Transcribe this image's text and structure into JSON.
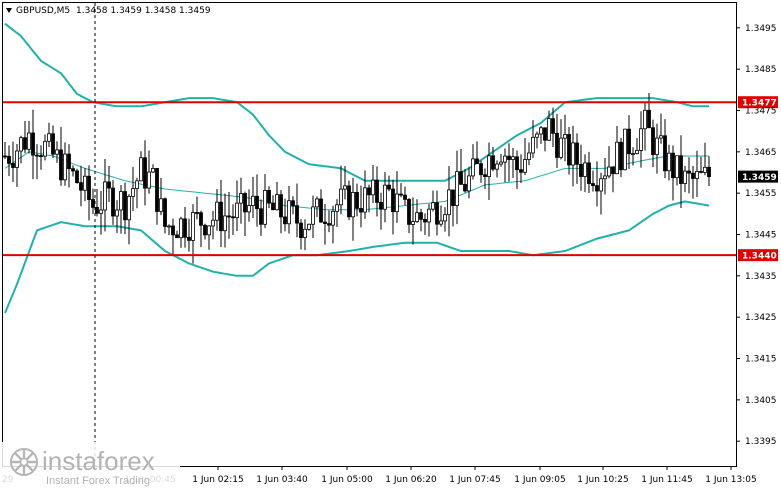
{
  "header": {
    "symbol_label": "GBPUSD,M5",
    "ohlc_text": "1.3458 1.3459 1.3458 1.3459"
  },
  "levels": {
    "upper": "1.3477",
    "lower": "1.3440",
    "current": "1.3459"
  },
  "watermark": {
    "brand": "instaforex",
    "tagline": "Instant Forex Trading"
  },
  "colors": {
    "background": "#ffffff",
    "candle": "#000000",
    "bollinger": "#20b2aa",
    "level_line": "#e00000",
    "level_label_bg": "#e00000",
    "current_label_bg": "#000000"
  },
  "chart_data": {
    "type": "candlestick",
    "symbol": "GBPUSD",
    "timeframe": "M5",
    "y_ticks": [
      "1.3495",
      "1.3485",
      "1.3475",
      "1.3465",
      "1.3455",
      "1.3445",
      "1.3435",
      "1.3425",
      "1.3415",
      "1.3405",
      "1.3395"
    ],
    "x_ticks": [
      "1 Jun 00:45",
      "1 Jun 02:15",
      "1 Jun 03:40",
      "1 Jun 05:00",
      "1 Jun 06:20",
      "1 Jun 07:45",
      "1 Jun 09:05",
      "1 Jun 10:25",
      "1 Jun 11:45",
      "1 Jun 13:05"
    ],
    "ylim": [
      1.3389,
      1.3501
    ],
    "horizontal_levels": [
      1.3477,
      1.344
    ],
    "current_price": 1.3459,
    "candle_count": 177,
    "candle_shape": [
      [
        0,
        1.3464
      ],
      [
        2,
        1.3465
      ],
      [
        6,
        1.3469
      ],
      [
        10,
        1.3466
      ],
      [
        14,
        1.3462
      ],
      [
        18,
        1.3458
      ],
      [
        22,
        1.3452
      ],
      [
        26,
        1.3454
      ],
      [
        30,
        1.3453
      ],
      [
        34,
        1.346
      ],
      [
        37,
        1.3458
      ],
      [
        40,
        1.3447
      ],
      [
        46,
        1.3448
      ],
      [
        52,
        1.3449
      ],
      [
        58,
        1.345
      ],
      [
        62,
        1.3452
      ],
      [
        66,
        1.3451
      ],
      [
        70,
        1.345
      ],
      [
        74,
        1.3448
      ],
      [
        78,
        1.345
      ],
      [
        82,
        1.3452
      ],
      [
        86,
        1.3453
      ],
      [
        92,
        1.3454
      ],
      [
        96,
        1.3455
      ],
      [
        100,
        1.345
      ],
      [
        104,
        1.3449
      ],
      [
        108,
        1.3452
      ],
      [
        112,
        1.3455
      ],
      [
        116,
        1.3458
      ],
      [
        120,
        1.3463
      ],
      [
        124,
        1.3466
      ],
      [
        128,
        1.3461
      ],
      [
        132,
        1.3466
      ],
      [
        136,
        1.3471
      ],
      [
        140,
        1.3465
      ],
      [
        144,
        1.3462
      ],
      [
        148,
        1.346
      ],
      [
        152,
        1.3463
      ],
      [
        156,
        1.3467
      ],
      [
        160,
        1.3471
      ],
      [
        163,
        1.3466
      ],
      [
        166,
        1.3462
      ],
      [
        170,
        1.3458
      ],
      [
        173,
        1.3458
      ],
      [
        176,
        1.3459
      ]
    ],
    "bollinger": {
      "upper": [
        [
          0,
          1.3496
        ],
        [
          4,
          1.3493
        ],
        [
          9,
          1.3487
        ],
        [
          14,
          1.3484
        ],
        [
          18,
          1.3479
        ],
        [
          22,
          1.3477
        ],
        [
          28,
          1.3476
        ],
        [
          34,
          1.3476
        ],
        [
          40,
          1.3477
        ],
        [
          46,
          1.3478
        ],
        [
          52,
          1.3478
        ],
        [
          58,
          1.3477
        ],
        [
          62,
          1.3474
        ],
        [
          66,
          1.3469
        ],
        [
          70,
          1.3465
        ],
        [
          76,
          1.3462
        ],
        [
          84,
          1.3461
        ],
        [
          90,
          1.3458
        ],
        [
          100,
          1.3458
        ],
        [
          110,
          1.3458
        ],
        [
          116,
          1.3461
        ],
        [
          122,
          1.3465
        ],
        [
          128,
          1.3469
        ],
        [
          134,
          1.3472
        ],
        [
          140,
          1.3477
        ],
        [
          148,
          1.3478
        ],
        [
          156,
          1.3478
        ],
        [
          162,
          1.3478
        ],
        [
          168,
          1.3477
        ],
        [
          172,
          1.3476
        ],
        [
          176,
          1.3476
        ]
      ],
      "middle": [
        [
          0,
          1.3461
        ],
        [
          6,
          1.3465
        ],
        [
          12,
          1.3464
        ],
        [
          20,
          1.3461
        ],
        [
          30,
          1.3458
        ],
        [
          40,
          1.3456
        ],
        [
          50,
          1.3455
        ],
        [
          60,
          1.3454
        ],
        [
          70,
          1.3452
        ],
        [
          80,
          1.3451
        ],
        [
          90,
          1.3451
        ],
        [
          100,
          1.3452
        ],
        [
          110,
          1.3453
        ],
        [
          120,
          1.3457
        ],
        [
          130,
          1.3458
        ],
        [
          140,
          1.3461
        ],
        [
          150,
          1.3461
        ],
        [
          160,
          1.3463
        ],
        [
          166,
          1.3464
        ],
        [
          172,
          1.3464
        ],
        [
          176,
          1.3464
        ]
      ],
      "lower": [
        [
          0,
          1.3426
        ],
        [
          3,
          1.3433
        ],
        [
          8,
          1.3446
        ],
        [
          14,
          1.3448
        ],
        [
          20,
          1.3447
        ],
        [
          28,
          1.3447
        ],
        [
          34,
          1.3446
        ],
        [
          40,
          1.3441
        ],
        [
          46,
          1.3438
        ],
        [
          52,
          1.3436
        ],
        [
          58,
          1.3435
        ],
        [
          62,
          1.3435
        ],
        [
          66,
          1.3438
        ],
        [
          72,
          1.344
        ],
        [
          78,
          1.344
        ],
        [
          86,
          1.3441
        ],
        [
          92,
          1.3442
        ],
        [
          100,
          1.3443
        ],
        [
          108,
          1.3443
        ],
        [
          114,
          1.3441
        ],
        [
          120,
          1.3441
        ],
        [
          126,
          1.3441
        ],
        [
          132,
          1.344
        ],
        [
          140,
          1.3441
        ],
        [
          148,
          1.3444
        ],
        [
          156,
          1.3446
        ],
        [
          162,
          1.345
        ],
        [
          166,
          1.3452
        ],
        [
          170,
          1.3453
        ],
        [
          176,
          1.3452
        ]
      ]
    }
  }
}
